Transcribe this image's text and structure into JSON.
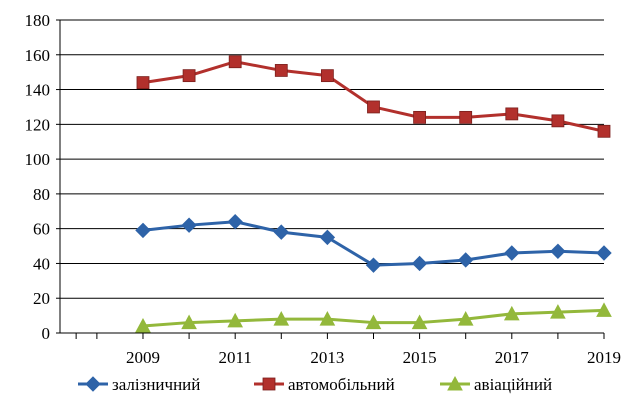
{
  "chart_data": {
    "type": "line",
    "x": [
      2009,
      2010,
      2011,
      2012,
      2013,
      2014,
      2015,
      2016,
      2017,
      2018,
      2019
    ],
    "x_tick_labels": [
      "2009",
      "2011",
      "2013",
      "2015",
      "2017",
      "2019"
    ],
    "y_tick_labels": [
      "0",
      "20",
      "40",
      "60",
      "80",
      "100",
      "120",
      "140",
      "160",
      "180"
    ],
    "ylim": [
      0,
      180
    ],
    "grid": true,
    "legend_position": "bottom",
    "series": [
      {
        "name": "залізничний",
        "color": "#2e63a8",
        "marker": "diamond",
        "values": [
          59,
          62,
          64,
          58,
          55,
          39,
          40,
          42,
          46,
          47,
          46
        ]
      },
      {
        "name": "автомобільний",
        "color": "#b2302c",
        "marker": "square",
        "values": [
          144,
          148,
          156,
          151,
          148,
          130,
          124,
          124,
          126,
          122,
          116
        ]
      },
      {
        "name": "авіаційний",
        "color": "#93b83b",
        "marker": "triangle",
        "values": [
          4,
          6,
          7,
          8,
          8,
          6,
          6,
          8,
          11,
          12,
          13
        ]
      }
    ]
  }
}
